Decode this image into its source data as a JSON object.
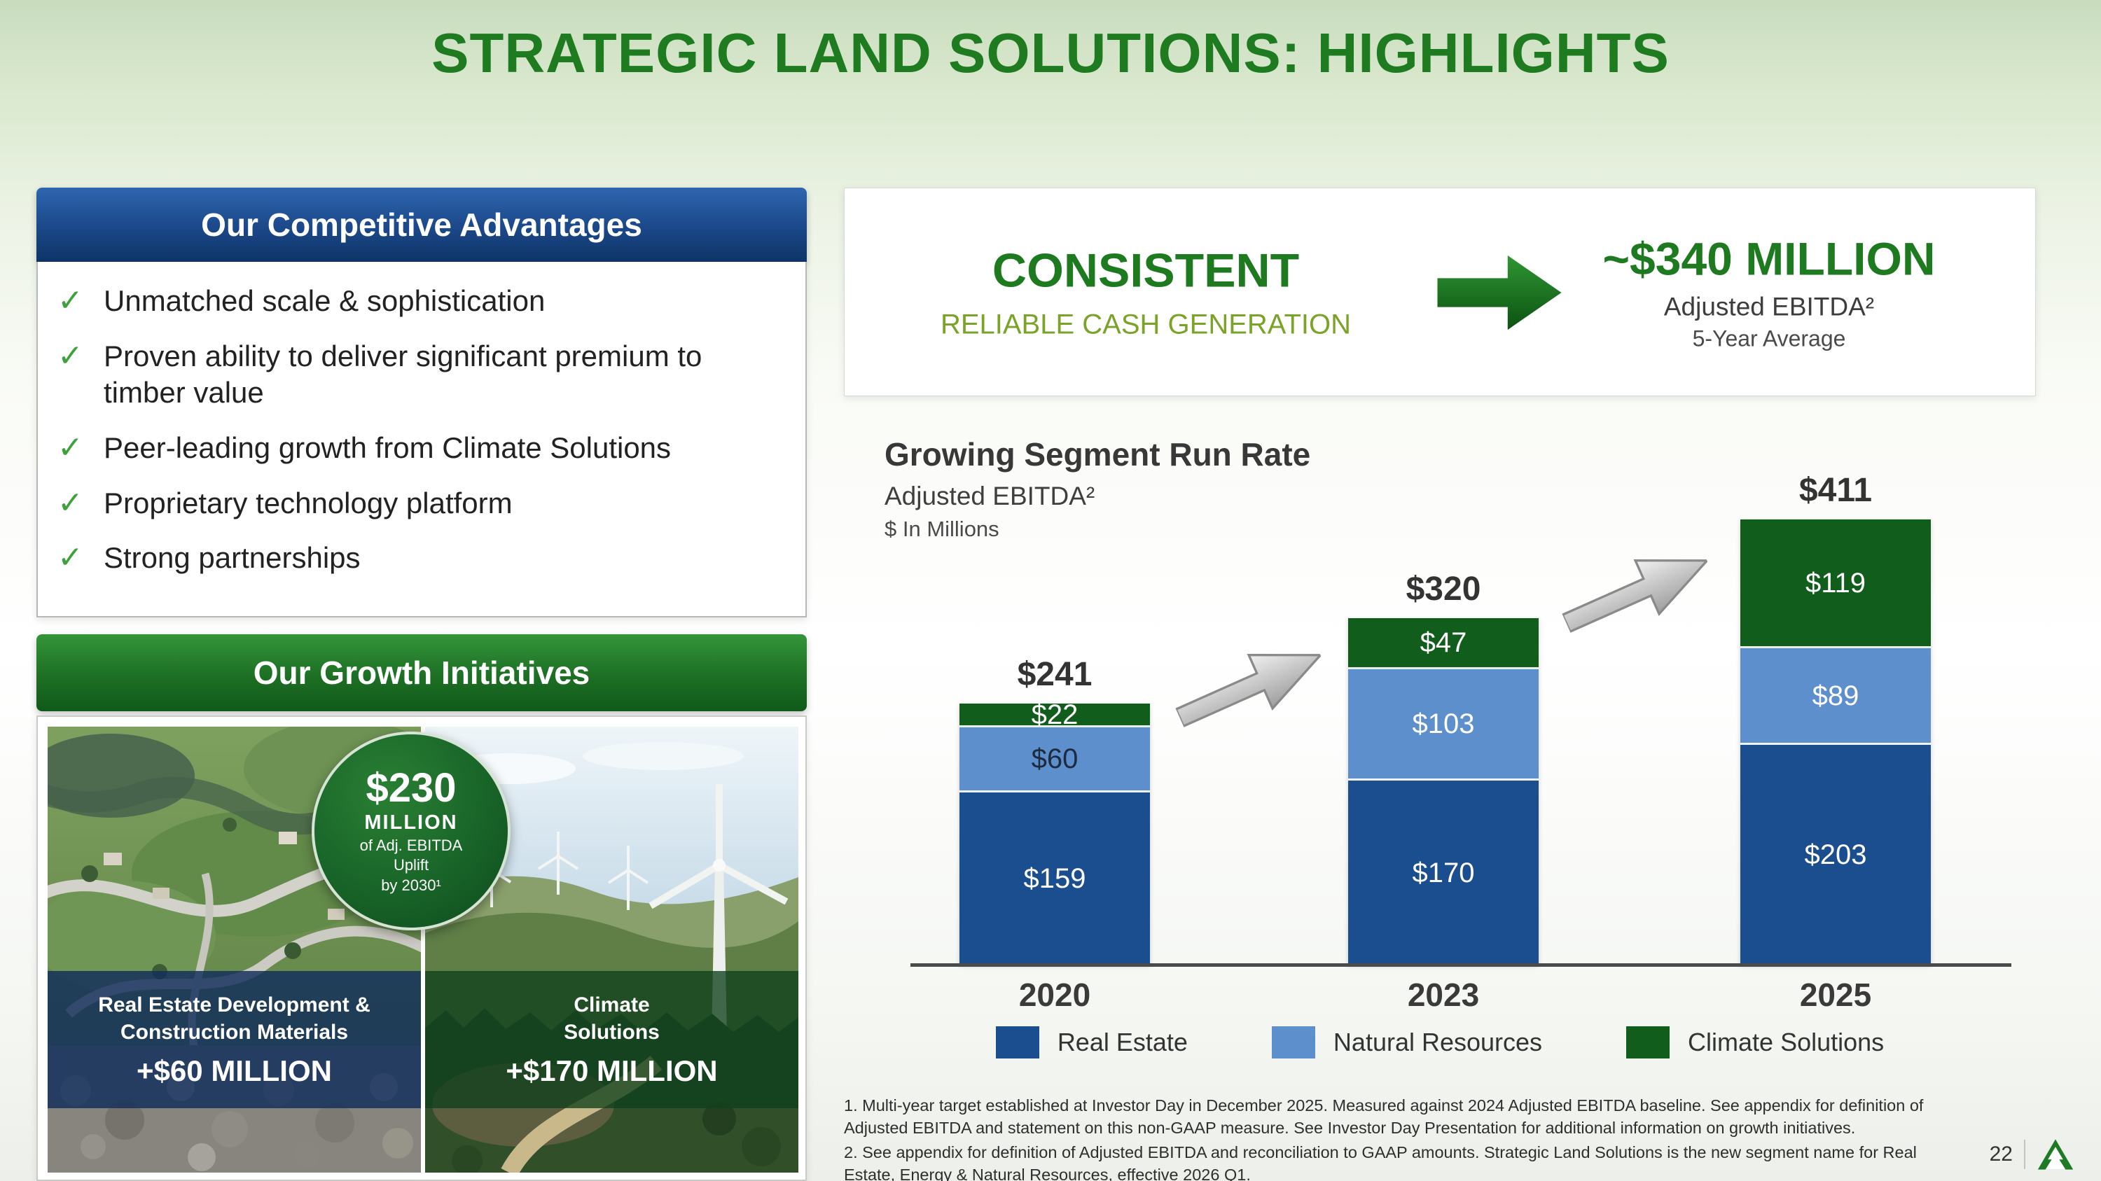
{
  "slide": {
    "title": "STRATEGIC LAND SOLUTIONS: HIGHLIGHTS",
    "page_number": "22"
  },
  "colors": {
    "brand_green": "#1e7b20",
    "accent_lime": "#79a427",
    "header_blue": "#1c4a8c",
    "header_green": "#1d6f24"
  },
  "competitive": {
    "header": "Our Competitive Advantages",
    "check_icon": "✓",
    "items": [
      "Unmatched scale & sophistication",
      "Proven ability to deliver significant premium to timber value",
      "Peer-leading growth from Climate Solutions",
      "Proprietary technology platform",
      "Strong partnerships"
    ]
  },
  "growth": {
    "header": "Our Growth Initiatives",
    "badge": {
      "amount": "$230",
      "unit": "MILLION",
      "line1": "of Adj. EBITDA",
      "line2": "Uplift",
      "line3": "by 2030¹"
    },
    "cards": [
      {
        "label": "Real Estate Development & Construction Materials",
        "uplift": "+$60 MILLION"
      },
      {
        "label": "Climate Solutions",
        "uplift": "+$170 MILLION"
      }
    ]
  },
  "banner": {
    "line1": "CONSISTENT",
    "line2": "RELIABLE CASH GENERATION",
    "amount": "~$340 MILLION",
    "sub1": "Adjusted EBITDA²",
    "sub2": "5-Year Average"
  },
  "chart_data": {
    "type": "bar",
    "stacked": true,
    "title": "Growing Segment Run Rate",
    "subtitle": "Adjusted EBITDA²",
    "units": "$ In Millions",
    "categories": [
      "2020",
      "2023",
      "2025"
    ],
    "totals": [
      241,
      320,
      411
    ],
    "series": [
      {
        "name": "Real Estate",
        "color": "#1b4e8f",
        "values": [
          159,
          170,
          203
        ],
        "label_colors": [
          "#ffffff",
          "#ffffff",
          "#ffffff"
        ]
      },
      {
        "name": "Natural Resources",
        "color": "#5d8fcd",
        "values": [
          60,
          103,
          89
        ],
        "label_colors": [
          "#1c2b40",
          "#ffffff",
          "#ffffff"
        ]
      },
      {
        "name": "Climate Solutions",
        "color": "#115e1c",
        "values": [
          22,
          47,
          119
        ],
        "label_colors": [
          "#ffffff",
          "#ffffff",
          "#ffffff"
        ]
      }
    ],
    "legend_position": "bottom",
    "ylim": [
      0,
      450
    ],
    "grid": false
  },
  "footnotes": [
    "1. Multi-year target established at Investor Day in December 2025. Measured against 2024 Adjusted EBITDA baseline. See appendix for definition of Adjusted EBITDA and statement on this non-GAAP measure. See Investor Day Presentation for additional information on growth initiatives.",
    "2. See appendix for definition of Adjusted EBITDA and reconciliation to GAAP amounts. Strategic Land Solutions is the new segment name for Real Estate, Energy & Natural Resources, effective 2026 Q1."
  ]
}
